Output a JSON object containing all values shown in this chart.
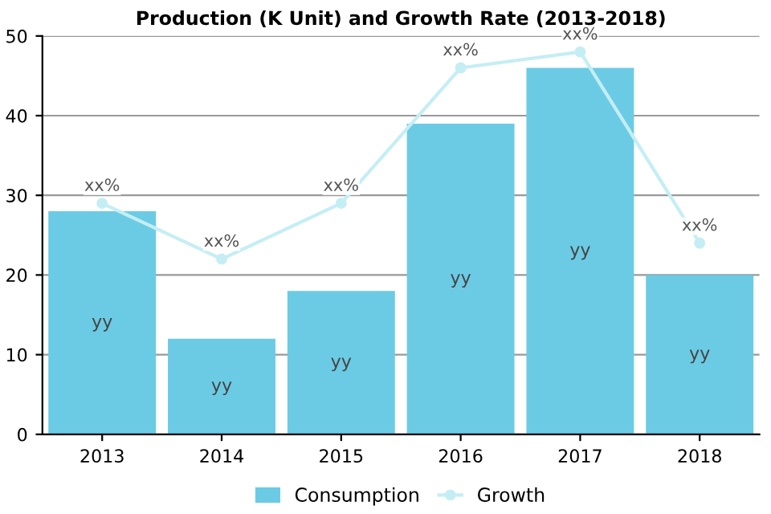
{
  "chart_data": {
    "type": "bar",
    "title": "Production (K Unit) and Growth Rate (2013-2018)",
    "categories": [
      "2013",
      "2014",
      "2015",
      "2016",
      "2017",
      "2018"
    ],
    "series": [
      {
        "name": "Consumption",
        "color": "#6ccbe4",
        "values": [
          28,
          12,
          18,
          39,
          46,
          20
        ],
        "value_labels": [
          "yy",
          "yy",
          "yy",
          "yy",
          "yy",
          "yy"
        ]
      },
      {
        "name": "Growth",
        "type": "line",
        "color": "#c4eef4",
        "marker": "circle",
        "values": [
          29,
          22,
          29,
          46,
          48,
          24
        ],
        "value_labels": [
          "xx%",
          "xx%",
          "xx%",
          "xx%",
          "xx%",
          "xx%"
        ]
      }
    ],
    "ylim": [
      0,
      50
    ],
    "yticks": [
      0,
      10,
      20,
      30,
      40,
      50
    ],
    "grid": "y",
    "legend": "bottom"
  }
}
